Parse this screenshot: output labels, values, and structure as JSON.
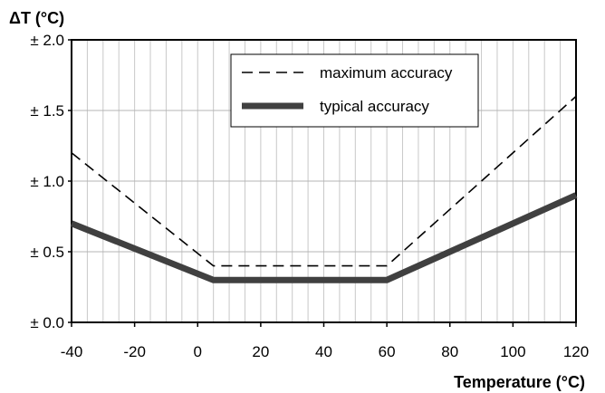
{
  "chart_data": {
    "type": "line",
    "title": "",
    "xlabel": "Temperature (°C)",
    "ylabel": "ΔT (°C)",
    "xlim": [
      -40,
      120
    ],
    "ylim": [
      0,
      2
    ],
    "x_ticks": [
      -40,
      -20,
      0,
      20,
      40,
      60,
      80,
      100,
      120
    ],
    "x_tick_labels": [
      "-40",
      "-20",
      "0",
      "20",
      "40",
      "60",
      "80",
      "100",
      "120"
    ],
    "y_ticks": [
      0,
      0.5,
      1.0,
      1.5,
      2.0
    ],
    "y_tick_labels": [
      "± 0.0",
      "± 0.5",
      "± 1.0",
      "± 1.5",
      "± 2.0"
    ],
    "grid": true,
    "legend_position": "top-right",
    "series": [
      {
        "name": "maximum accuracy",
        "style": "dashed",
        "color": "#000000",
        "points": [
          [
            -40,
            1.2
          ],
          [
            5,
            0.4
          ],
          [
            60,
            0.4
          ],
          [
            120,
            1.6
          ]
        ]
      },
      {
        "name": "typical accuracy",
        "style": "solid-thick",
        "color": "#404040",
        "points": [
          [
            -40,
            0.7
          ],
          [
            5,
            0.3
          ],
          [
            60,
            0.3
          ],
          [
            120,
            0.9
          ]
        ]
      }
    ]
  }
}
